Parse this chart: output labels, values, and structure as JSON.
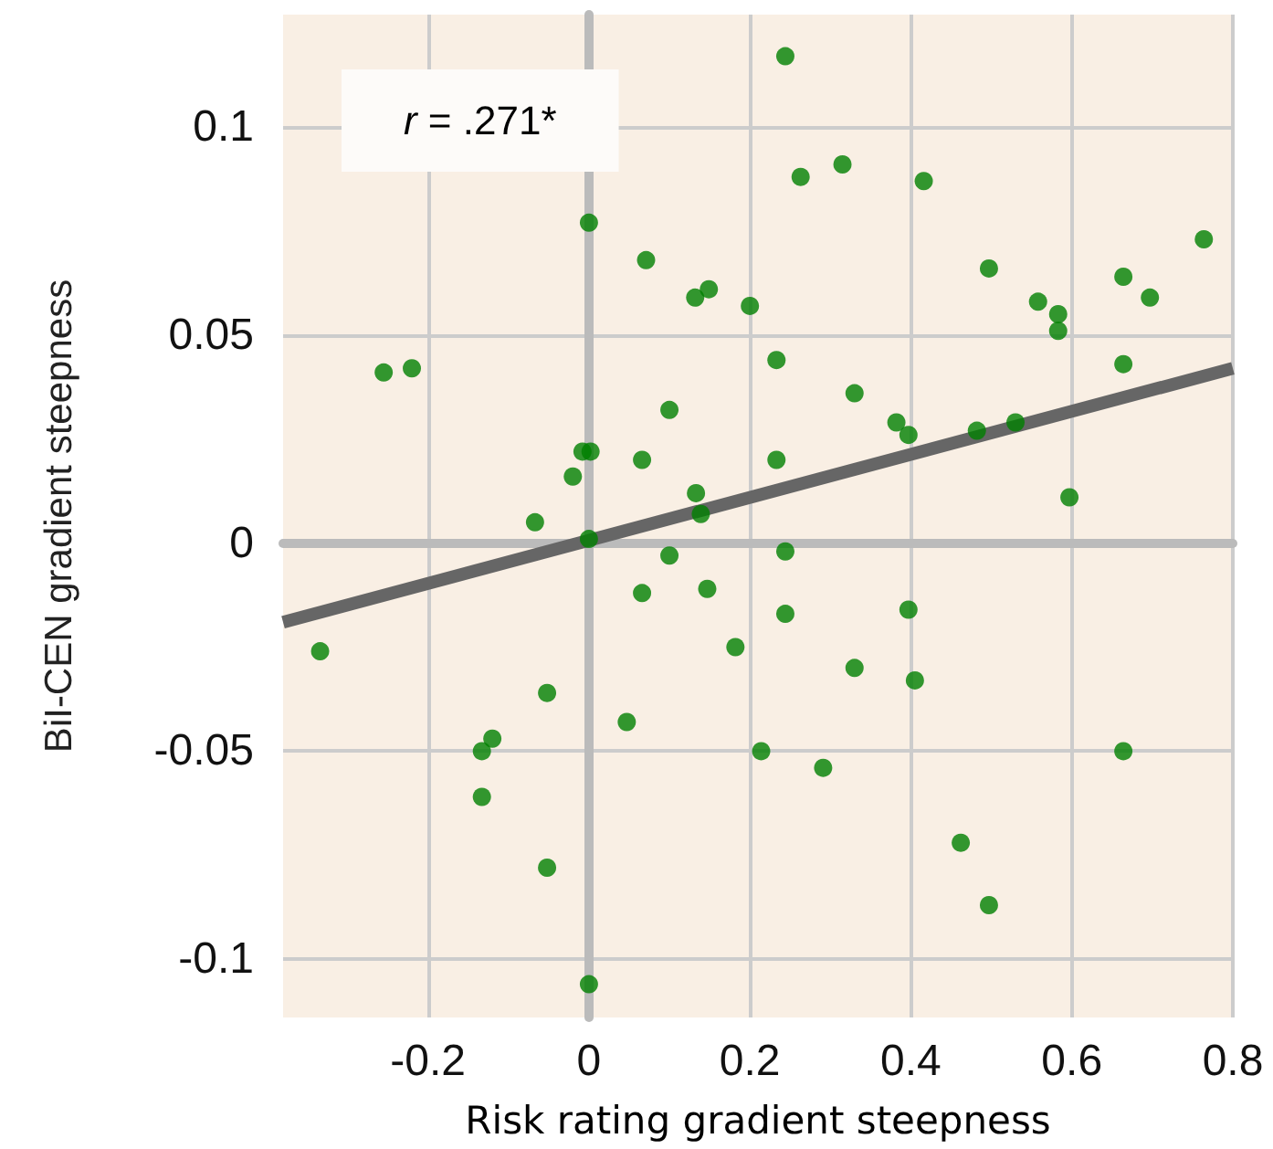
{
  "chart_data": {
    "type": "scatter",
    "xlabel": "Risk rating gradient steepness",
    "ylabel": "BiI-CEN gradient steepness",
    "annotations": [
      "r = .271*"
    ],
    "xlim": [
      -0.38,
      0.8
    ],
    "xticks": [
      -0.2,
      0,
      0.2,
      0.4,
      0.6,
      0.8
    ],
    "ylim": [
      -0.114,
      0.127
    ],
    "yticks": [
      -0.1,
      -0.05,
      0,
      0.05,
      0.1
    ],
    "grid": true,
    "marker": "circle",
    "series": [
      {
        "color": "#008000",
        "x": [
          0.244,
          0,
          0.071,
          0.132,
          0.149,
          0.2,
          -0.255,
          -0.22,
          0.233,
          0.1,
          -0.008,
          0.002,
          0.066,
          0.233,
          -0.02,
          0.133,
          0.139,
          -0.067,
          0,
          0.263,
          0.315,
          0.416,
          0.497,
          0.558,
          0.583,
          0.583,
          0.664,
          0.697,
          0.764,
          0.33,
          0.382,
          0.397,
          0.482,
          0.53,
          0.664,
          0.597,
          0.1,
          0.066,
          0.147,
          0.244,
          0.244,
          0.182,
          -0.334,
          -0.052,
          0.047,
          -0.12,
          -0.133,
          0.214,
          -0.133,
          -0.052,
          0,
          0.397,
          0.33,
          0.405,
          0.291,
          0.664,
          0.462,
          0.497
        ],
        "values": [
          0.117,
          0.077,
          0.068,
          0.059,
          0.061,
          0.057,
          0.041,
          0.042,
          0.044,
          0.032,
          0.022,
          0.022,
          0.02,
          0.02,
          0.016,
          0.012,
          0.007,
          0.005,
          0.001,
          0.088,
          0.091,
          0.087,
          0.066,
          0.058,
          0.055,
          0.051,
          0.064,
          0.059,
          0.073,
          0.036,
          0.029,
          0.026,
          0.027,
          0.029,
          0.043,
          0.011,
          -0.003,
          -0.012,
          -0.011,
          -0.002,
          -0.017,
          -0.025,
          -0.026,
          -0.036,
          -0.043,
          -0.047,
          -0.05,
          -0.05,
          -0.061,
          -0.078,
          -0.106,
          -0.016,
          -0.03,
          -0.033,
          -0.054,
          -0.05,
          -0.072,
          -0.087
        ]
      },
      {
        "type": "line",
        "color": "#666666",
        "marker": "none",
        "x": [
          -0.38,
          0.8
        ],
        "values": [
          -0.019,
          0.042
        ]
      }
    ]
  }
}
